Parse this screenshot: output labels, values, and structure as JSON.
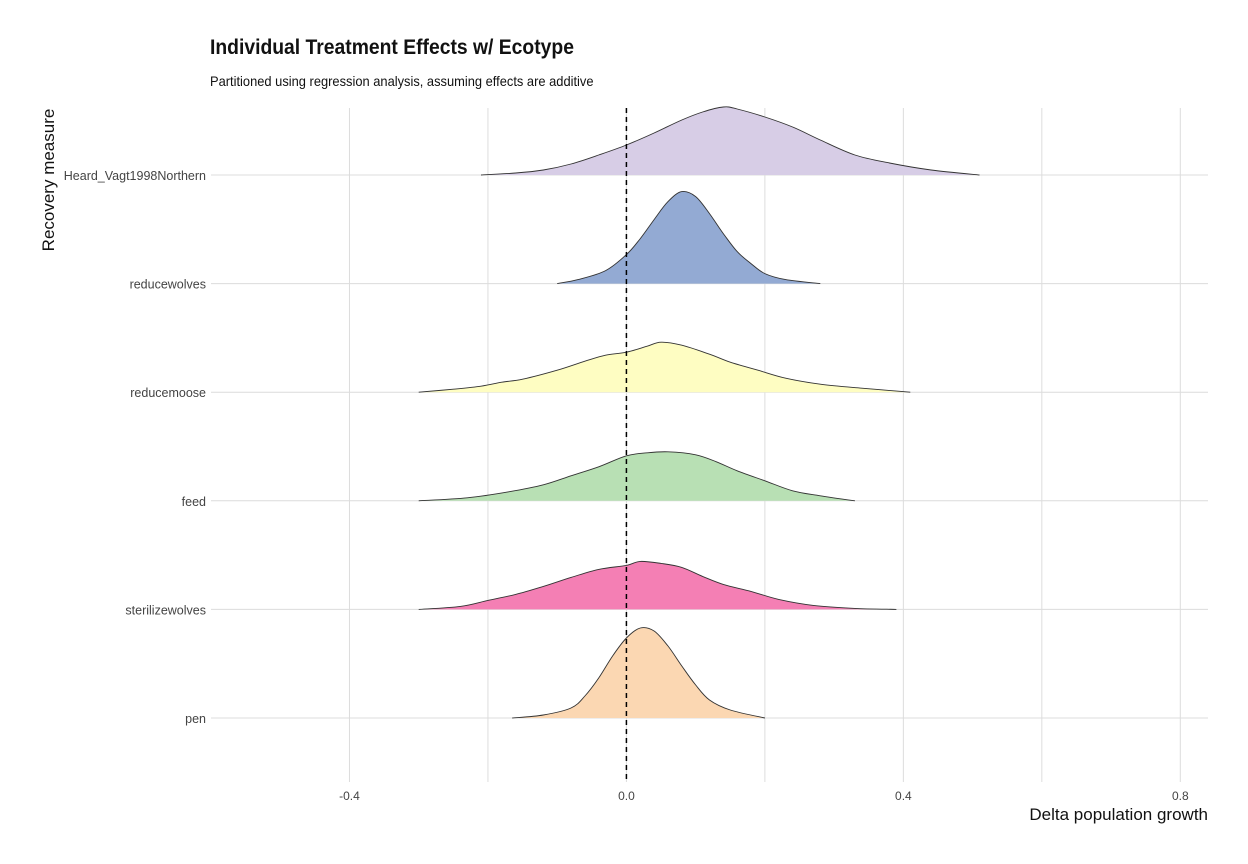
{
  "chart_data": {
    "type": "ridgeline",
    "title": "Individual Treatment Effects w/ Ecotype",
    "subtitle": "Partitioned using regression analysis, assuming effects are additive",
    "xlabel": "Delta population growth",
    "ylabel": "Recovery measure",
    "xlim": [
      -0.6,
      0.84
    ],
    "x_ticks": [
      -0.4,
      0.0,
      0.4,
      0.8
    ],
    "x_tick_labels": [
      "-0.4",
      "0.0",
      "0.4",
      "0.8"
    ],
    "reference_line": {
      "x": 0.0,
      "style": "dashed"
    },
    "grid": true,
    "legend": "none",
    "series": [
      {
        "name": "Heard_Vagt1998Northern",
        "color": "#d7cde6",
        "points": [
          [
            -0.21,
            0
          ],
          [
            -0.16,
            0.02
          ],
          [
            -0.12,
            0.05
          ],
          [
            -0.08,
            0.11
          ],
          [
            -0.04,
            0.2
          ],
          [
            0.0,
            0.3
          ],
          [
            0.04,
            0.42
          ],
          [
            0.08,
            0.55
          ],
          [
            0.11,
            0.63
          ],
          [
            0.14,
            0.68
          ],
          [
            0.16,
            0.66
          ],
          [
            0.2,
            0.58
          ],
          [
            0.24,
            0.48
          ],
          [
            0.28,
            0.35
          ],
          [
            0.33,
            0.2
          ],
          [
            0.38,
            0.12
          ],
          [
            0.44,
            0.05
          ],
          [
            0.51,
            0
          ]
        ]
      },
      {
        "name": "reducewolves",
        "color": "#93aad3",
        "points": [
          [
            -0.1,
            0
          ],
          [
            -0.07,
            0.04
          ],
          [
            -0.03,
            0.13
          ],
          [
            0.0,
            0.29
          ],
          [
            0.02,
            0.45
          ],
          [
            0.04,
            0.64
          ],
          [
            0.06,
            0.82
          ],
          [
            0.08,
            0.92
          ],
          [
            0.1,
            0.87
          ],
          [
            0.12,
            0.7
          ],
          [
            0.14,
            0.5
          ],
          [
            0.16,
            0.32
          ],
          [
            0.18,
            0.2
          ],
          [
            0.2,
            0.1
          ],
          [
            0.23,
            0.04
          ],
          [
            0.28,
            0
          ]
        ]
      },
      {
        "name": "reducemoose",
        "color": "#fefdc2",
        "points": [
          [
            -0.3,
            0
          ],
          [
            -0.25,
            0.03
          ],
          [
            -0.21,
            0.06
          ],
          [
            -0.18,
            0.1
          ],
          [
            -0.15,
            0.13
          ],
          [
            -0.1,
            0.22
          ],
          [
            -0.06,
            0.31
          ],
          [
            -0.03,
            0.37
          ],
          [
            0.0,
            0.4
          ],
          [
            0.03,
            0.46
          ],
          [
            0.05,
            0.5
          ],
          [
            0.08,
            0.47
          ],
          [
            0.12,
            0.38
          ],
          [
            0.15,
            0.3
          ],
          [
            0.19,
            0.22
          ],
          [
            0.23,
            0.14
          ],
          [
            0.28,
            0.08
          ],
          [
            0.34,
            0.04
          ],
          [
            0.41,
            0
          ]
        ]
      },
      {
        "name": "feed",
        "color": "#b8e0b4",
        "points": [
          [
            -0.3,
            0
          ],
          [
            -0.23,
            0.03
          ],
          [
            -0.17,
            0.09
          ],
          [
            -0.12,
            0.16
          ],
          [
            -0.08,
            0.25
          ],
          [
            -0.04,
            0.34
          ],
          [
            0.0,
            0.45
          ],
          [
            0.03,
            0.48
          ],
          [
            0.06,
            0.49
          ],
          [
            0.1,
            0.46
          ],
          [
            0.13,
            0.39
          ],
          [
            0.16,
            0.3
          ],
          [
            0.2,
            0.2
          ],
          [
            0.24,
            0.1
          ],
          [
            0.28,
            0.05
          ],
          [
            0.33,
            0
          ]
        ]
      },
      {
        "name": "sterilizewolves",
        "color": "#f47fb4",
        "points": [
          [
            -0.3,
            0
          ],
          [
            -0.24,
            0.03
          ],
          [
            -0.2,
            0.09
          ],
          [
            -0.16,
            0.15
          ],
          [
            -0.12,
            0.23
          ],
          [
            -0.08,
            0.32
          ],
          [
            -0.04,
            0.4
          ],
          [
            0.0,
            0.44
          ],
          [
            0.02,
            0.48
          ],
          [
            0.05,
            0.46
          ],
          [
            0.08,
            0.42
          ],
          [
            0.11,
            0.33
          ],
          [
            0.14,
            0.25
          ],
          [
            0.18,
            0.18
          ],
          [
            0.22,
            0.1
          ],
          [
            0.27,
            0.04
          ],
          [
            0.33,
            0.01
          ],
          [
            0.39,
            0
          ]
        ]
      },
      {
        "name": "pen",
        "color": "#fbd7b2",
        "points": [
          [
            -0.165,
            0
          ],
          [
            -0.12,
            0.03
          ],
          [
            -0.08,
            0.1
          ],
          [
            -0.06,
            0.22
          ],
          [
            -0.04,
            0.4
          ],
          [
            -0.02,
            0.62
          ],
          [
            0.0,
            0.8
          ],
          [
            0.02,
            0.9
          ],
          [
            0.04,
            0.87
          ],
          [
            0.06,
            0.72
          ],
          [
            0.08,
            0.52
          ],
          [
            0.1,
            0.33
          ],
          [
            0.12,
            0.18
          ],
          [
            0.15,
            0.08
          ],
          [
            0.2,
            0
          ]
        ]
      }
    ]
  },
  "style": {
    "grid_color": "#dcdcdc",
    "line_color": "#333333",
    "ref_line_color": "#000000"
  }
}
